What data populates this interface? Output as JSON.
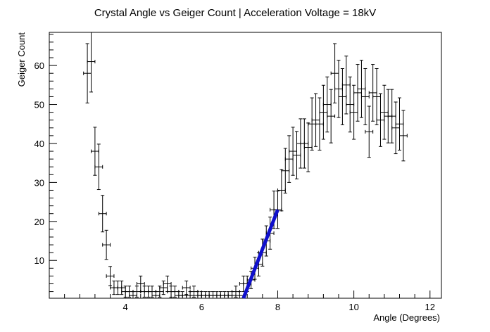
{
  "chart_data": {
    "type": "scatter",
    "title": "Crystal Angle vs Geiger Count | Acceleration Voltage = 18kV",
    "xlabel": "Angle (Degrees)",
    "ylabel": "Geiger Count",
    "xlim": [
      2.0,
      12.3
    ],
    "ylim": [
      0.3,
      68.5
    ],
    "x_ticks": [
      4,
      6,
      8,
      10,
      12
    ],
    "y_ticks": [
      10,
      20,
      30,
      40,
      50,
      60
    ],
    "x_error": 0.1,
    "y_error_mode": "sqrt",
    "grid": false,
    "legend": "none",
    "colors": {
      "points": "#000000",
      "fit_line": "#1010cc",
      "frame": "#000000"
    },
    "points": [
      {
        "x": 3.0,
        "y": 58
      },
      {
        "x": 3.1,
        "y": 61
      },
      {
        "x": 3.2,
        "y": 38
      },
      {
        "x": 3.3,
        "y": 34
      },
      {
        "x": 3.4,
        "y": 22
      },
      {
        "x": 3.5,
        "y": 14
      },
      {
        "x": 3.6,
        "y": 6
      },
      {
        "x": 3.7,
        "y": 3
      },
      {
        "x": 3.8,
        "y": 3
      },
      {
        "x": 3.9,
        "y": 3
      },
      {
        "x": 4.0,
        "y": 2
      },
      {
        "x": 4.1,
        "y": 2
      },
      {
        "x": 4.2,
        "y": 1
      },
      {
        "x": 4.3,
        "y": 2
      },
      {
        "x": 4.4,
        "y": 4
      },
      {
        "x": 4.5,
        "y": 2
      },
      {
        "x": 4.6,
        "y": 2
      },
      {
        "x": 4.7,
        "y": 2
      },
      {
        "x": 4.8,
        "y": 1
      },
      {
        "x": 4.9,
        "y": 2
      },
      {
        "x": 5.0,
        "y": 3
      },
      {
        "x": 5.1,
        "y": 4
      },
      {
        "x": 5.2,
        "y": 2
      },
      {
        "x": 5.3,
        "y": 2
      },
      {
        "x": 5.4,
        "y": 1
      },
      {
        "x": 5.5,
        "y": 1
      },
      {
        "x": 5.6,
        "y": 3
      },
      {
        "x": 5.7,
        "y": 1
      },
      {
        "x": 5.8,
        "y": 2
      },
      {
        "x": 5.9,
        "y": 1
      },
      {
        "x": 6.0,
        "y": 1
      },
      {
        "x": 6.1,
        "y": 1
      },
      {
        "x": 6.2,
        "y": 1
      },
      {
        "x": 6.3,
        "y": 1
      },
      {
        "x": 6.4,
        "y": 1
      },
      {
        "x": 6.5,
        "y": 1
      },
      {
        "x": 6.6,
        "y": 1
      },
      {
        "x": 6.7,
        "y": 1
      },
      {
        "x": 6.8,
        "y": 1
      },
      {
        "x": 6.9,
        "y": 2
      },
      {
        "x": 7.0,
        "y": 1
      },
      {
        "x": 7.1,
        "y": 4
      },
      {
        "x": 7.2,
        "y": 4
      },
      {
        "x": 7.3,
        "y": 5
      },
      {
        "x": 7.4,
        "y": 8
      },
      {
        "x": 7.5,
        "y": 9
      },
      {
        "x": 7.6,
        "y": 12
      },
      {
        "x": 7.7,
        "y": 15
      },
      {
        "x": 7.8,
        "y": 17
      },
      {
        "x": 7.9,
        "y": 23
      },
      {
        "x": 8.0,
        "y": 23
      },
      {
        "x": 8.1,
        "y": 28
      },
      {
        "x": 8.2,
        "y": 33
      },
      {
        "x": 8.3,
        "y": 36
      },
      {
        "x": 8.4,
        "y": 38
      },
      {
        "x": 8.5,
        "y": 37
      },
      {
        "x": 8.6,
        "y": 40
      },
      {
        "x": 8.7,
        "y": 40
      },
      {
        "x": 8.8,
        "y": 39
      },
      {
        "x": 8.9,
        "y": 45
      },
      {
        "x": 9.0,
        "y": 46
      },
      {
        "x": 9.1,
        "y": 45
      },
      {
        "x": 9.2,
        "y": 48
      },
      {
        "x": 9.3,
        "y": 50
      },
      {
        "x": 9.4,
        "y": 47
      },
      {
        "x": 9.5,
        "y": 58
      },
      {
        "x": 9.6,
        "y": 54
      },
      {
        "x": 9.7,
        "y": 52
      },
      {
        "x": 9.8,
        "y": 55
      },
      {
        "x": 9.9,
        "y": 50
      },
      {
        "x": 10.0,
        "y": 48
      },
      {
        "x": 10.1,
        "y": 53
      },
      {
        "x": 10.2,
        "y": 54
      },
      {
        "x": 10.3,
        "y": 52
      },
      {
        "x": 10.4,
        "y": 43
      },
      {
        "x": 10.5,
        "y": 53
      },
      {
        "x": 10.6,
        "y": 52
      },
      {
        "x": 10.7,
        "y": 46
      },
      {
        "x": 10.8,
        "y": 48
      },
      {
        "x": 10.9,
        "y": 47
      },
      {
        "x": 11.0,
        "y": 47
      },
      {
        "x": 11.1,
        "y": 44
      },
      {
        "x": 11.2,
        "y": 45
      },
      {
        "x": 11.3,
        "y": 42
      }
    ],
    "fit_line": {
      "x": [
        7.1,
        8.0
      ],
      "y": [
        0.3,
        23
      ]
    }
  }
}
